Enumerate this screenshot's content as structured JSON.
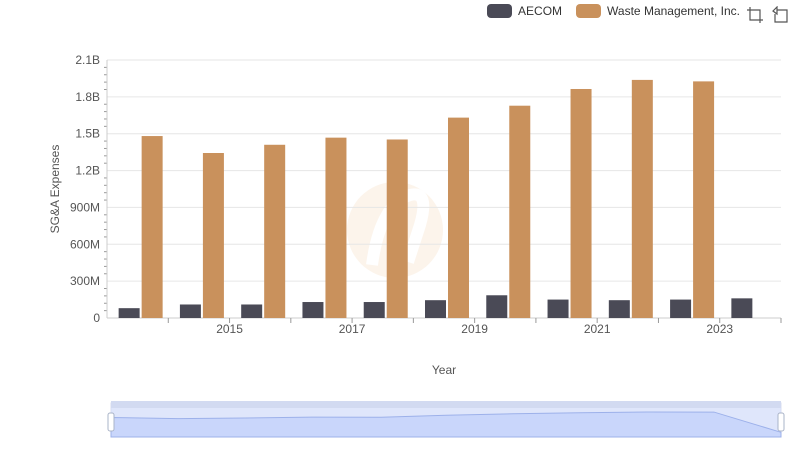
{
  "legend": {
    "items": [
      {
        "name": "AECOM",
        "color": "#4a4a56"
      },
      {
        "name": "Waste Management, Inc.",
        "color": "#c9915c"
      }
    ]
  },
  "toolbar": {
    "icons": [
      "zoom-icon",
      "restore-icon"
    ]
  },
  "chart_data": {
    "type": "bar",
    "xlabel": "Year",
    "ylabel": "SG&A Expenses",
    "ylim": [
      0,
      2100000000
    ],
    "y_ticks": [
      {
        "value": 0,
        "label": "0"
      },
      {
        "value": 300000000,
        "label": "300M"
      },
      {
        "value": 600000000,
        "label": "600M"
      },
      {
        "value": 900000000,
        "label": "900M"
      },
      {
        "value": 1200000000,
        "label": "1.2B"
      },
      {
        "value": 1500000000,
        "label": "1.5B"
      },
      {
        "value": 1800000000,
        "label": "1.8B"
      },
      {
        "value": 2100000000,
        "label": "2.1B"
      }
    ],
    "categories": [
      2014,
      2015,
      2016,
      2017,
      2018,
      2019,
      2020,
      2021,
      2022,
      2023,
      2024
    ],
    "x_tick_labels": [
      "2015",
      "2017",
      "2019",
      "2021",
      "2023"
    ],
    "series": [
      {
        "name": "AECOM",
        "color": "#4a4a56",
        "values": [
          80000000,
          110000000,
          110000000,
          130000000,
          130000000,
          145000000,
          185000000,
          150000000,
          145000000,
          150000000,
          160000000
        ]
      },
      {
        "name": "Waste Management, Inc.",
        "color": "#c9915c",
        "values": [
          1481000000,
          1343000000,
          1410000000,
          1468000000,
          1453000000,
          1631000000,
          1728000000,
          1864000000,
          1938000000,
          1926000000,
          null
        ]
      }
    ],
    "grid": true,
    "legend_position": "top-right"
  }
}
